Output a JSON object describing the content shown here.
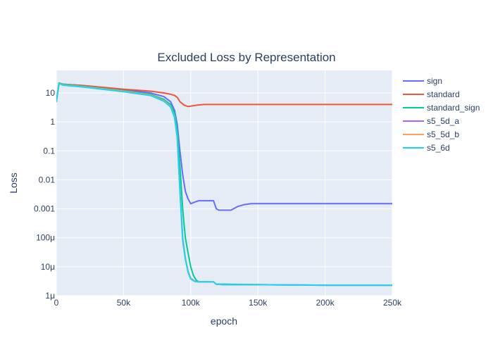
{
  "chart_data": {
    "type": "line",
    "title": "Excluded Loss by Representation",
    "xlabel": "epoch",
    "ylabel": "Loss",
    "log_y": true,
    "xlim": [
      0,
      250000
    ],
    "ylim": [
      1e-06,
      60
    ],
    "grid": true,
    "legend_position": "right",
    "background_color": "#E5ECF6",
    "x_ticks": [
      0,
      50000,
      100000,
      150000,
      200000,
      250000
    ],
    "x_tick_labels": [
      "0",
      "50k",
      "100k",
      "150k",
      "200k",
      "250k"
    ],
    "y_ticks": [
      1e-06,
      1e-05,
      0.0001,
      0.001,
      0.01,
      0.1,
      1,
      10
    ],
    "y_tick_labels": [
      "1μ",
      "10μ",
      "100μ",
      "0.001",
      "0.01",
      "0.1",
      "1",
      "10"
    ],
    "series": [
      {
        "name": "sign",
        "color": "#636EFA",
        "x": [
          0,
          2000,
          5000,
          20000,
          50000,
          70000,
          80000,
          85000,
          88000,
          90000,
          92000,
          94000,
          96000,
          98000,
          100000,
          103000,
          106000,
          110000,
          117000,
          119000,
          121000,
          125000,
          130000,
          135000,
          140000,
          145000,
          150000,
          200000,
          250000
        ],
        "y": [
          5,
          22,
          20,
          18,
          13,
          10,
          7.5,
          5,
          2.5,
          0.8,
          0.1,
          0.015,
          0.004,
          0.0022,
          0.0015,
          0.0017,
          0.0019,
          0.0019,
          0.0019,
          0.001,
          0.0009,
          0.0009,
          0.0009,
          0.0012,
          0.0014,
          0.0015,
          0.0015,
          0.0015,
          0.0015
        ]
      },
      {
        "name": "standard",
        "color": "#EF553B",
        "x": [
          0,
          2000,
          5000,
          20000,
          50000,
          70000,
          80000,
          85000,
          88000,
          90000,
          92000,
          95000,
          98000,
          100000,
          105000,
          110000,
          150000,
          200000,
          250000
        ],
        "y": [
          5,
          22,
          20,
          18,
          13.5,
          11.5,
          10,
          9,
          8.2,
          7,
          5,
          3.8,
          3.4,
          3.5,
          3.8,
          4,
          4,
          4,
          4
        ]
      },
      {
        "name": "standard_sign",
        "color": "#00CC96",
        "x": [
          0,
          2000,
          5000,
          20000,
          50000,
          70000,
          80000,
          85000,
          88000,
          90000,
          92000,
          94000,
          95000,
          96000,
          98000,
          100000,
          102000,
          104000,
          106000,
          110000,
          115000,
          117000,
          119000,
          125000,
          150000,
          200000,
          250000
        ],
        "y": [
          5,
          22,
          20,
          17,
          12,
          9,
          6,
          4,
          2,
          0.5,
          0.03,
          0.001,
          0.0003,
          0.0001,
          3e-05,
          1e-05,
          5e-06,
          3.5e-06,
          3e-06,
          3e-06,
          3e-06,
          3e-06,
          2.5e-06,
          2.5e-06,
          2.4e-06,
          2.3e-06,
          2.3e-06
        ]
      },
      {
        "name": "s5_5d_a",
        "color": "#AB63FA",
        "x": [
          0,
          2000,
          5000,
          20000,
          50000,
          70000,
          80000,
          85000,
          88000,
          90000,
          92000,
          94000,
          96000,
          98000,
          100000,
          103000,
          106000,
          110000,
          117000,
          119000,
          125000,
          150000,
          200000,
          250000
        ],
        "y": [
          5,
          21,
          19,
          16.5,
          11.5,
          8.5,
          5.5,
          3.5,
          1.5,
          0.3,
          0.005,
          0.0001,
          2e-05,
          7e-06,
          4e-06,
          3.2e-06,
          3e-06,
          3e-06,
          3e-06,
          2.5e-06,
          2.4e-06,
          2.4e-06,
          2.3e-06,
          2.3e-06
        ]
      },
      {
        "name": "s5_5d_b",
        "color": "#FFA15A",
        "x": [
          0,
          2000,
          5000,
          20000,
          50000,
          70000,
          80000,
          85000,
          88000,
          90000,
          92000,
          94000,
          96000,
          98000,
          100000,
          103000,
          106000,
          110000,
          117000,
          119000,
          125000,
          150000,
          200000,
          250000
        ],
        "y": [
          5,
          21,
          19,
          16.5,
          11.5,
          8.5,
          5.5,
          3.5,
          1.5,
          0.3,
          0.005,
          0.0001,
          2e-05,
          7e-06,
          4e-06,
          3.2e-06,
          3e-06,
          3e-06,
          3e-06,
          2.5e-06,
          2.4e-06,
          2.4e-06,
          2.3e-06,
          2.3e-06
        ]
      },
      {
        "name": "s5_6d",
        "color": "#19D3F3",
        "x": [
          0,
          2000,
          5000,
          20000,
          50000,
          70000,
          80000,
          85000,
          88000,
          90000,
          92000,
          94000,
          96000,
          98000,
          100000,
          103000,
          106000,
          110000,
          117000,
          119000,
          125000,
          150000,
          200000,
          250000
        ],
        "y": [
          5,
          21,
          18.5,
          16,
          11,
          8.2,
          5.2,
          3.3,
          1.4,
          0.28,
          0.004,
          8e-05,
          1.8e-05,
          6.5e-06,
          3.8e-06,
          3.1e-06,
          3e-06,
          3e-06,
          3e-06,
          2.5e-06,
          2.4e-06,
          2.4e-06,
          2.3e-06,
          2.3e-06
        ]
      }
    ]
  }
}
